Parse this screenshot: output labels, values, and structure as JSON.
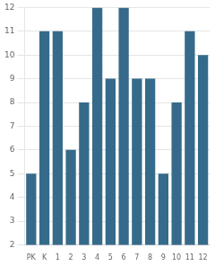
{
  "chart_data": {
    "type": "bar",
    "categories": [
      "PK",
      "K",
      "1",
      "2",
      "3",
      "4",
      "5",
      "6",
      "7",
      "8",
      "9",
      "10",
      "11",
      "12"
    ],
    "values": [
      5,
      11,
      11,
      6,
      8,
      12,
      9,
      12,
      9,
      9,
      5,
      8,
      11,
      10
    ],
    "color": "#366a8a",
    "ylim": [
      2,
      12
    ],
    "yticks": [
      2,
      3,
      4,
      5,
      6,
      7,
      8,
      9,
      10,
      11,
      12
    ],
    "grid": true
  }
}
